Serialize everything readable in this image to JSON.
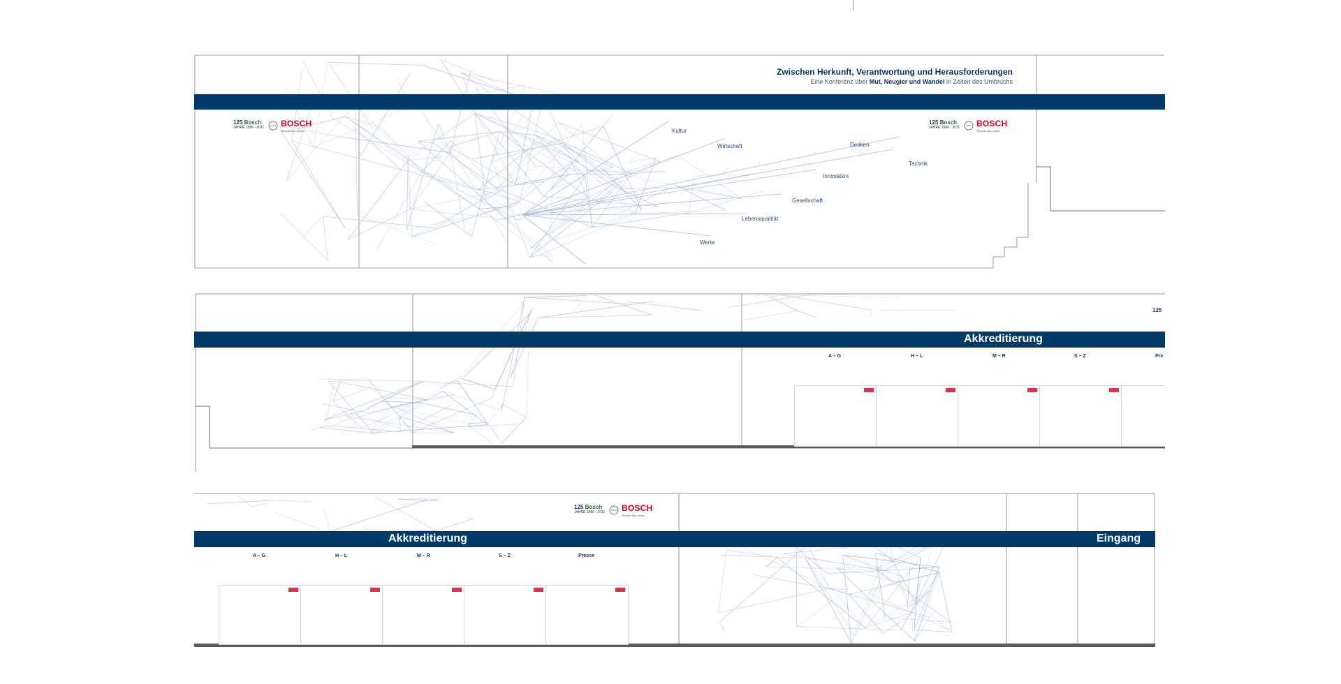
{
  "top_wall": {
    "headline": "Zwischen Herkunft, Verantwortung und Herausforderungen",
    "sub_prefix": "Eine Konferenz über ",
    "sub_bold": "Mut, Neugier und Wandel",
    "sub_suffix": " in Zeiten des Umbruchs",
    "keywords": [
      "Kultur",
      "Wirtschaft",
      "Denken",
      "Technik",
      "Innovation",
      "Gesellschaft",
      "Lebensqualität",
      "Werte"
    ]
  },
  "logos": {
    "anniversary_number": "125",
    "anniversary_brand": "Bosch",
    "anniversary_sub": "JAHRE  1886 - 2011",
    "brand": "BOSCH",
    "tagline": "Technik fürs Leben"
  },
  "middle_wall": {
    "title": "Akkreditierung",
    "columns": [
      "A – G",
      "H – L",
      "M – R",
      "S – Z",
      "Pre"
    ]
  },
  "bottom_wall": {
    "title": "Akkreditierung",
    "columns": [
      "A – G",
      "H – L",
      "M – R",
      "S – Z",
      "Presse"
    ],
    "entrance_title": "Eingang"
  },
  "colors": {
    "band": "#003a68",
    "network": "#8fa7d6",
    "bosch_red": "#d1001f"
  }
}
